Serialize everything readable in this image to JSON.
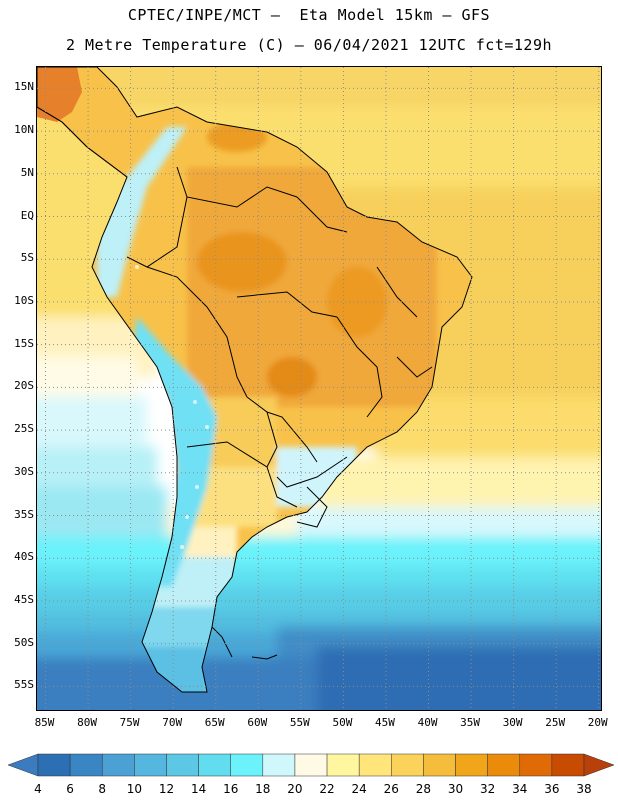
{
  "title": {
    "line1": "CPTEC/INPE/MCT –  Eta Model 15km – GFS",
    "line2": "2 Metre Temperature (C) – 06/04/2021 12UTC fct=129h"
  },
  "axes": {
    "lat_labels": [
      "15N",
      "10N",
      "5N",
      "EQ",
      "5S",
      "10S",
      "15S",
      "20S",
      "25S",
      "30S",
      "35S",
      "40S",
      "45S",
      "50S",
      "55S"
    ],
    "lat_values": [
      15,
      10,
      5,
      0,
      -5,
      -10,
      -15,
      -20,
      -25,
      -30,
      -35,
      -40,
      -45,
      -50,
      -55
    ],
    "lon_labels": [
      "85W",
      "80W",
      "75W",
      "70W",
      "65W",
      "60W",
      "55W",
      "50W",
      "45W",
      "40W",
      "35W",
      "30W",
      "25W",
      "20W"
    ],
    "lon_values": [
      -85,
      -80,
      -75,
      -70,
      -65,
      -60,
      -55,
      -50,
      -45,
      -40,
      -35,
      -30,
      -25,
      -20
    ],
    "lat_range": [
      -58,
      17.5
    ],
    "lon_range": [
      -86,
      -19.5
    ]
  },
  "colorbar": {
    "labels": [
      "4",
      "6",
      "8",
      "10",
      "12",
      "14",
      "16",
      "18",
      "20",
      "22",
      "24",
      "26",
      "28",
      "30",
      "32",
      "34",
      "36",
      "38"
    ],
    "colors": [
      "#2d6fb3",
      "#3a86c4",
      "#4ba1d4",
      "#55b6e0",
      "#5cc8e6",
      "#62dcef",
      "#6bf2fb",
      "#d0f8fc",
      "#fffae6",
      "#fff7a0",
      "#ffe57a",
      "#fbd25a",
      "#f5bd3c",
      "#f0a51a",
      "#ea8b0c",
      "#e06a06",
      "#c84b02"
    ],
    "low_color": "#3a7cbf",
    "high_color": "#b8400a"
  },
  "colors": {
    "land_outline": "#000000",
    "grid": "#8c8c8c"
  }
}
